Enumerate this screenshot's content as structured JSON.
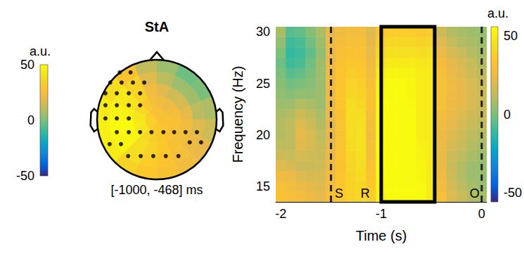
{
  "chart_data": [
    {
      "type": "topoplot",
      "title": "StA",
      "subtitle": "[-1000, -468] ms",
      "rings": [
        0,
        0.2,
        0.4,
        0.6,
        0.8,
        1.0
      ],
      "angles_deg": [
        0,
        22.5,
        45,
        67.5,
        90,
        112.5,
        135,
        157.5,
        180,
        202.5,
        225,
        247.5,
        270,
        292.5,
        315,
        337.5,
        360
      ],
      "values": [
        [
          28,
          28,
          28,
          28,
          28,
          30,
          30,
          32,
          32,
          34,
          36,
          36,
          35,
          33,
          30,
          28
        ],
        [
          24,
          22,
          24,
          26,
          27,
          28,
          30,
          32,
          34,
          38,
          42,
          44,
          42,
          38,
          32,
          26
        ],
        [
          18,
          14,
          16,
          20,
          24,
          26,
          28,
          32,
          36,
          40,
          48,
          50,
          46,
          42,
          36,
          24
        ],
        [
          10,
          5,
          6,
          10,
          18,
          22,
          26,
          30,
          34,
          40,
          48,
          52,
          48,
          44,
          36,
          18
        ],
        [
          5,
          -2,
          0,
          8,
          14,
          20,
          24,
          28,
          32,
          36,
          44,
          46,
          44,
          40,
          30,
          12
        ]
      ],
      "electrodes": [
        [
          -0.62,
          0.79
        ],
        [
          -0.44,
          0.79
        ],
        [
          -0.78,
          0.62
        ],
        [
          -0.59,
          0.62
        ],
        [
          -0.4,
          0.62
        ],
        [
          -0.21,
          0.62
        ],
        [
          -0.86,
          0.44
        ],
        [
          -0.67,
          0.44
        ],
        [
          -0.47,
          0.44
        ],
        [
          -0.28,
          0.44
        ],
        [
          -0.86,
          0.24
        ],
        [
          -0.67,
          0.24
        ],
        [
          -0.47,
          0.24
        ],
        [
          -0.28,
          0.24
        ],
        [
          -0.86,
          0.02
        ],
        [
          -0.67,
          0.02
        ],
        [
          -0.47,
          0.02
        ],
        [
          -0.67,
          -0.21
        ],
        [
          -0.47,
          -0.21
        ],
        [
          -0.28,
          -0.21
        ],
        [
          -0.09,
          -0.21
        ],
        [
          0.11,
          -0.21
        ],
        [
          0.29,
          -0.21
        ],
        [
          0.48,
          -0.21
        ],
        [
          0.67,
          -0.21
        ],
        [
          -0.79,
          -0.41
        ],
        [
          -0.6,
          -0.41
        ],
        [
          0.55,
          -0.38
        ],
        [
          0.74,
          -0.38
        ],
        [
          -0.48,
          -0.61
        ],
        [
          -0.27,
          -0.61
        ],
        [
          -0.06,
          -0.61
        ],
        [
          0.15,
          -0.61
        ],
        [
          0.36,
          -0.61
        ]
      ],
      "color_range": [
        -50,
        50
      ],
      "color_ticks": [
        -50,
        0,
        50
      ],
      "colorbar_label": "a.u."
    },
    {
      "type": "heatmap",
      "x_label": "Time (s)",
      "y_label": "Frequency (Hz)",
      "x": [
        -2.0,
        -1.9,
        -1.8,
        -1.7,
        -1.6,
        -1.5,
        -1.4,
        -1.3,
        -1.2,
        -1.1,
        -1.0,
        -0.9,
        -0.8,
        -0.7,
        -0.6,
        -0.5,
        -0.4,
        -0.3,
        -0.2,
        -0.1,
        0.0
      ],
      "y": [
        14,
        15,
        16,
        17,
        18,
        19,
        20,
        21,
        22,
        23,
        24,
        25,
        26,
        27,
        28,
        29,
        30
      ],
      "cells": [
        [
          32,
          30,
          28,
          25,
          22,
          30,
          36,
          40,
          42,
          38,
          52,
          56,
          58,
          57,
          55,
          50,
          30,
          20,
          15,
          10,
          8
        ],
        [
          30,
          28,
          25,
          22,
          20,
          28,
          35,
          40,
          42,
          36,
          54,
          58,
          60,
          58,
          55,
          50,
          28,
          18,
          12,
          8,
          6
        ],
        [
          26,
          24,
          20,
          18,
          18,
          26,
          34,
          40,
          43,
          34,
          55,
          60,
          60,
          58,
          54,
          50,
          26,
          16,
          10,
          6,
          5
        ],
        [
          20,
          18,
          15,
          15,
          16,
          25,
          33,
          42,
          44,
          32,
          56,
          60,
          60,
          58,
          54,
          50,
          25,
          15,
          10,
          6,
          5
        ],
        [
          15,
          14,
          18,
          16,
          15,
          24,
          33,
          42,
          45,
          30,
          56,
          60,
          60,
          58,
          53,
          50,
          24,
          16,
          12,
          8,
          6
        ],
        [
          12,
          12,
          20,
          18,
          14,
          22,
          32,
          43,
          46,
          30,
          57,
          60,
          60,
          58,
          52,
          50,
          24,
          18,
          14,
          10,
          8
        ],
        [
          10,
          12,
          22,
          18,
          12,
          22,
          32,
          44,
          46,
          28,
          57,
          60,
          60,
          58,
          50,
          50,
          25,
          20,
          16,
          12,
          10
        ],
        [
          10,
          12,
          20,
          16,
          10,
          22,
          32,
          44,
          45,
          28,
          56,
          60,
          60,
          57,
          50,
          50,
          26,
          22,
          18,
          14,
          12
        ],
        [
          8,
          10,
          16,
          12,
          8,
          24,
          33,
          44,
          44,
          30,
          56,
          60,
          60,
          56,
          50,
          50,
          28,
          24,
          20,
          16,
          14
        ],
        [
          6,
          6,
          10,
          8,
          6,
          24,
          34,
          44,
          42,
          32,
          55,
          58,
          58,
          55,
          50,
          50,
          30,
          25,
          22,
          18,
          15
        ],
        [
          4,
          2,
          4,
          4,
          6,
          25,
          35,
          42,
          40,
          32,
          54,
          58,
          57,
          54,
          50,
          50,
          30,
          26,
          22,
          18,
          16
        ],
        [
          2,
          -2,
          0,
          2,
          6,
          26,
          35,
          40,
          38,
          30,
          52,
          56,
          56,
          54,
          50,
          50,
          30,
          26,
          22,
          18,
          15
        ],
        [
          0,
          -6,
          -4,
          0,
          6,
          26,
          34,
          38,
          36,
          28,
          50,
          54,
          54,
          53,
          50,
          50,
          30,
          24,
          20,
          16,
          12
        ],
        [
          -2,
          -10,
          -8,
          -2,
          6,
          25,
          32,
          35,
          34,
          26,
          46,
          50,
          50,
          50,
          48,
          48,
          28,
          22,
          18,
          14,
          10
        ],
        [
          0,
          -12,
          -10,
          -4,
          4,
          24,
          30,
          32,
          32,
          24,
          42,
          46,
          46,
          46,
          44,
          46,
          24,
          18,
          14,
          10,
          8
        ],
        [
          4,
          -10,
          -8,
          -2,
          6,
          24,
          28,
          30,
          30,
          22,
          38,
          42,
          42,
          42,
          40,
          42,
          20,
          14,
          10,
          8,
          6
        ],
        [
          8,
          -6,
          -4,
          2,
          8,
          22,
          26,
          28,
          28,
          20,
          34,
          38,
          38,
          38,
          36,
          38,
          16,
          10,
          8,
          6,
          5
        ]
      ],
      "xlim": [
        -2.05,
        0.05
      ],
      "xticks": [
        -2,
        -1,
        0
      ],
      "ylim": [
        13.5,
        30.5
      ],
      "yticks": [
        15,
        20,
        25,
        30
      ],
      "events": [
        {
          "time": -1.5,
          "label": "S",
          "label_time": -1.42
        },
        {
          "time": -1.0,
          "label": "R",
          "label_time": -1.16
        },
        {
          "time": 0,
          "label": "O",
          "label_time": -0.07
        }
      ],
      "window": [
        -1.0,
        -0.468
      ],
      "color_range": [
        -56,
        56
      ],
      "color_ticks": [
        -50,
        0,
        50
      ],
      "colorbar_label": "a.u."
    }
  ]
}
